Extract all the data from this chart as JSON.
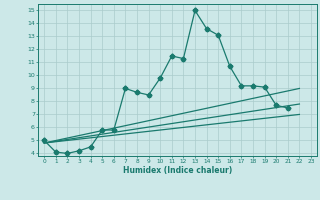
{
  "xlabel": "Humidex (Indice chaleur)",
  "background_color": "#cce8e8",
  "grid_color": "#aacccc",
  "line_color": "#1a7a6e",
  "xlim": [
    -0.5,
    23.5
  ],
  "ylim": [
    3.8,
    15.5
  ],
  "yticks": [
    4,
    5,
    6,
    7,
    8,
    9,
    10,
    11,
    12,
    13,
    14,
    15
  ],
  "xticks": [
    0,
    1,
    2,
    3,
    4,
    5,
    6,
    7,
    8,
    9,
    10,
    11,
    12,
    13,
    14,
    15,
    16,
    17,
    18,
    19,
    20,
    21,
    22,
    23
  ],
  "main_series": {
    "x": [
      0,
      1,
      2,
      3,
      4,
      5,
      6,
      7,
      8,
      9,
      10,
      11,
      12,
      13,
      14,
      15,
      16,
      17,
      18,
      19,
      20,
      21
    ],
    "y": [
      5.0,
      4.1,
      4.0,
      4.2,
      4.5,
      5.8,
      5.8,
      9.0,
      8.7,
      8.5,
      9.8,
      11.5,
      11.3,
      15.0,
      13.6,
      13.1,
      10.7,
      9.2,
      9.2,
      9.1,
      7.7,
      7.5
    ]
  },
  "trend_lines": [
    {
      "x": [
        0,
        22
      ],
      "y": [
        4.8,
        9.0
      ]
    },
    {
      "x": [
        0,
        22
      ],
      "y": [
        4.8,
        7.8
      ]
    },
    {
      "x": [
        0,
        22
      ],
      "y": [
        4.8,
        7.0
      ]
    }
  ]
}
